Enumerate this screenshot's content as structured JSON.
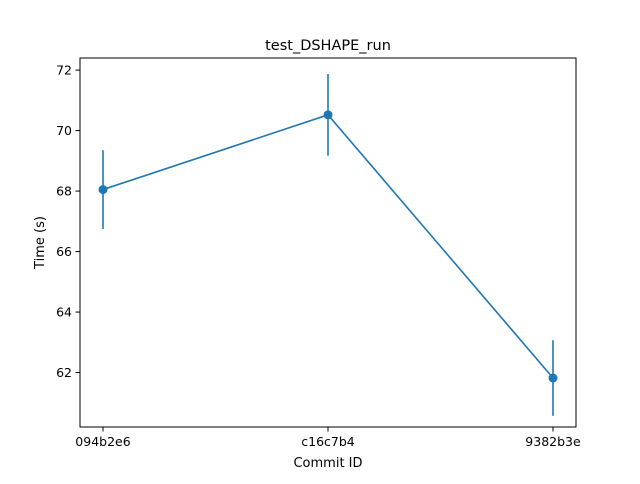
{
  "chart_data": {
    "type": "line",
    "title": "test_DSHAPE_run",
    "xlabel": "Commit ID",
    "ylabel": "Time (s)",
    "categories": [
      "094b2e6",
      "c16c7b4",
      "9382b3e"
    ],
    "series": [
      {
        "values": [
          68.05,
          70.52,
          61.82
        ],
        "errors": [
          1.3,
          1.35,
          1.25
        ],
        "color": "#1f77b4"
      }
    ],
    "ylim": [
      60.2,
      72.4
    ],
    "yticks": [
      62,
      64,
      66,
      68,
      70,
      72
    ],
    "grid": false,
    "legend": "none"
  }
}
